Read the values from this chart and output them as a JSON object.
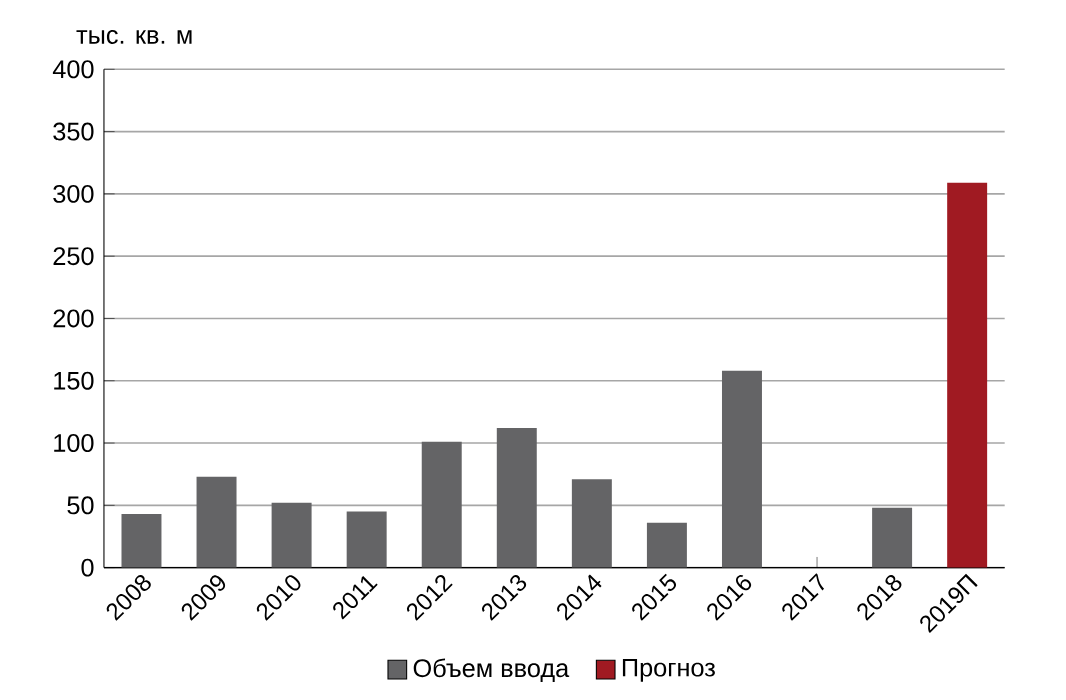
{
  "chart_data": {
    "type": "bar",
    "ylabel": "тыс. кв. м",
    "categories": [
      "2008",
      "2009",
      "2010",
      "2011",
      "2012",
      "2013",
      "2014",
      "2015",
      "2016",
      "2017",
      "2018",
      "2019П"
    ],
    "series": [
      {
        "name": "Объем ввода",
        "color": "#646466",
        "values": [
          43,
          73,
          52,
          45,
          101,
          112,
          71,
          36,
          158,
          0,
          48,
          null
        ]
      },
      {
        "name": "Прогноз",
        "color": "#a01a22",
        "values": [
          null,
          null,
          null,
          null,
          null,
          null,
          null,
          null,
          null,
          null,
          null,
          309
        ]
      }
    ],
    "ylim": [
      0,
      400
    ],
    "yticks": [
      0,
      50,
      100,
      150,
      200,
      250,
      300,
      350,
      400
    ],
    "grid": "y",
    "legend": "bottom"
  }
}
